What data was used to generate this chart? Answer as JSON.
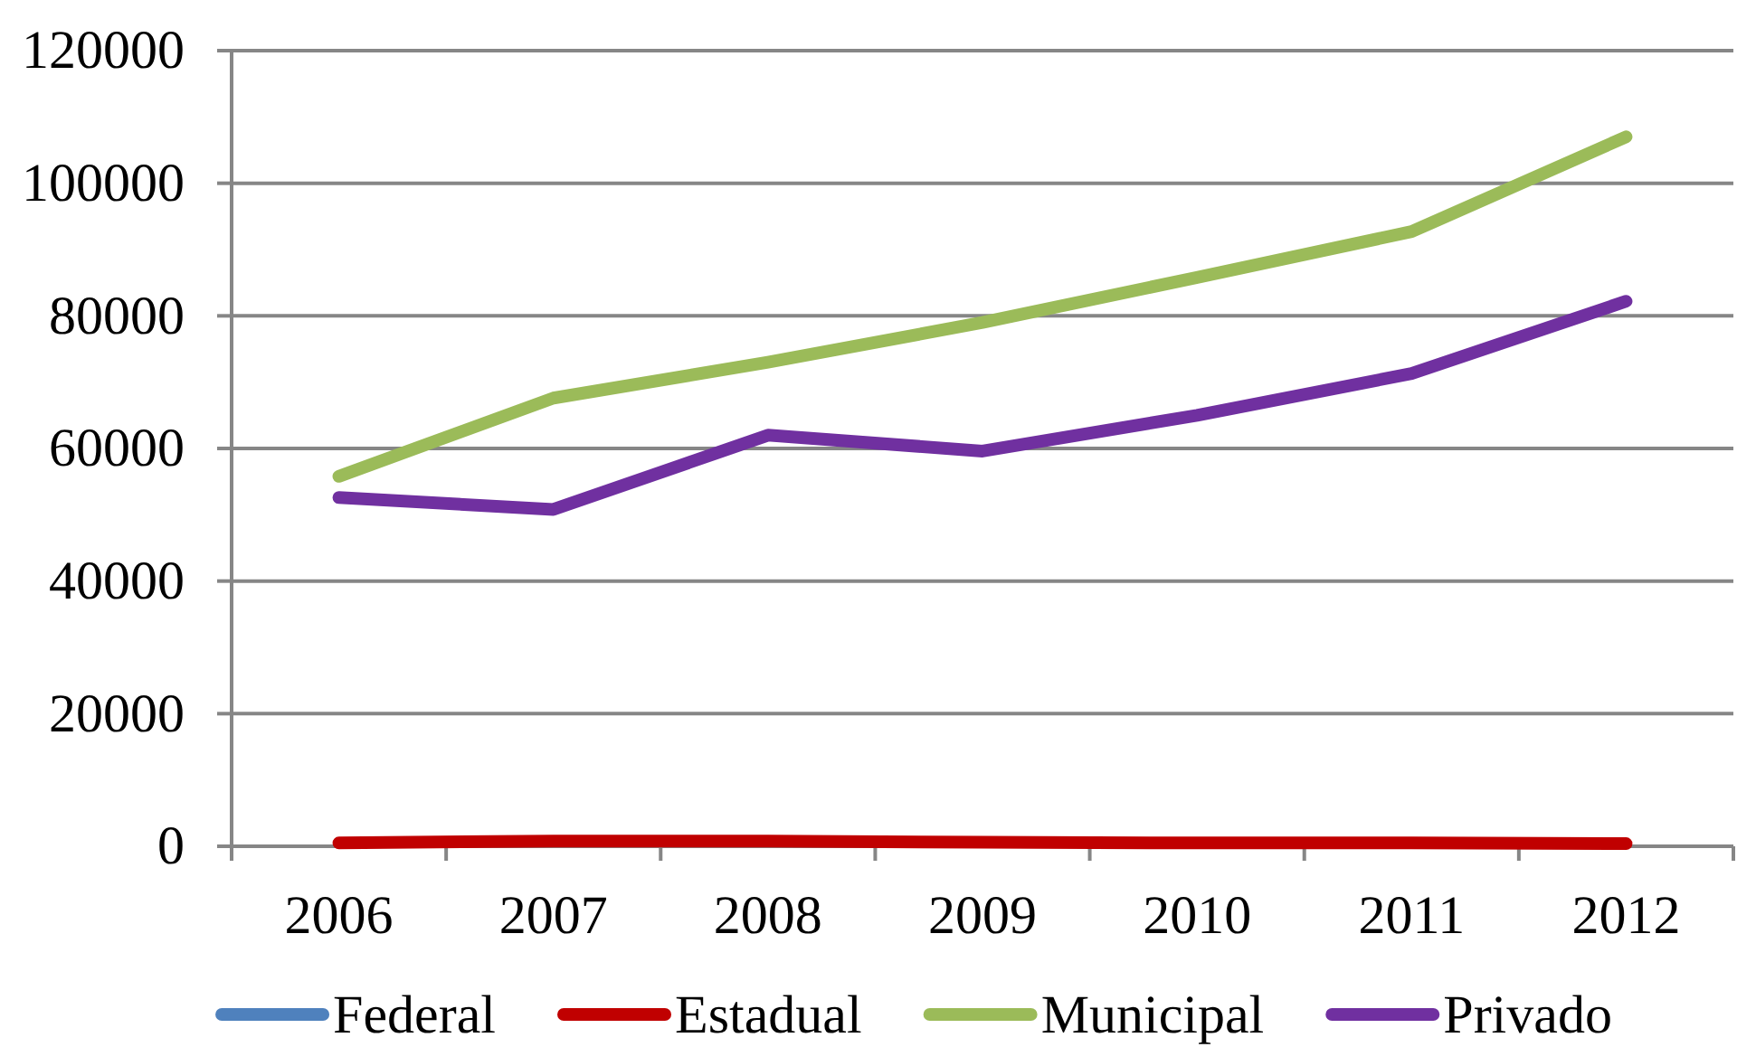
{
  "chart_data": {
    "type": "line",
    "categories": [
      "2006",
      "2007",
      "2008",
      "2009",
      "2010",
      "2011",
      "2012"
    ],
    "series": [
      {
        "name": "Federal",
        "color": "#4f81bd",
        "values": [
          null,
          null,
          null,
          null,
          null,
          null,
          null
        ]
      },
      {
        "name": "Estadual",
        "color": "#c00000",
        "values": [
          500,
          800,
          800,
          600,
          500,
          500,
          400
        ]
      },
      {
        "name": "Municipal",
        "color": "#9bbb59",
        "values": [
          55800,
          67600,
          73000,
          79000,
          85800,
          92700,
          107000
        ]
      },
      {
        "name": "Privado",
        "color": "#7030a0",
        "values": [
          52600,
          50800,
          62000,
          59600,
          65000,
          71300,
          82200
        ]
      }
    ],
    "ylim": [
      0,
      120000
    ],
    "yticks": [
      0,
      20000,
      40000,
      60000,
      80000,
      100000,
      120000
    ],
    "grid": "y",
    "legend": "bottom",
    "marker": "none",
    "line_style": "solid"
  }
}
